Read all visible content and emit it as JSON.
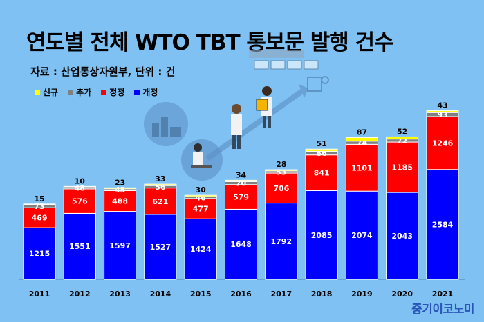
{
  "header": {
    "title": "연도별 전체 WTO TBT 통보문 발행 건수",
    "source": "자료 : 산업통상자원부, 단위 : 건"
  },
  "brand": "중기이코노미",
  "colors": {
    "background": "#7fc1f2",
    "new": "#ffff00",
    "add": "#808080",
    "revise": "#ff0000",
    "regular": "#0000ff"
  },
  "chart_data": {
    "type": "bar",
    "stacked": true,
    "categories": [
      "2011",
      "2012",
      "2013",
      "2014",
      "2015",
      "2016",
      "2017",
      "2018",
      "2019",
      "2020",
      "2021"
    ],
    "series": [
      {
        "name": "개정",
        "key": "regular",
        "values": [
          1215,
          1551,
          1597,
          1527,
          1424,
          1648,
          1792,
          2085,
          2074,
          2043,
          2584
        ]
      },
      {
        "name": "정정",
        "key": "revise",
        "values": [
          469,
          576,
          488,
          621,
          477,
          579,
          706,
          841,
          1101,
          1185,
          1246
        ]
      },
      {
        "name": "추가",
        "key": "add",
        "values": [
          73,
          48,
          45,
          56,
          46,
          70,
          53,
          86,
          74,
          72,
          93
        ]
      },
      {
        "name": "신규",
        "key": "new",
        "values": [
          15,
          10,
          23,
          33,
          30,
          34,
          28,
          51,
          87,
          52,
          43
        ]
      }
    ],
    "legend_order": [
      "신규",
      "추가",
      "정정",
      "개정"
    ],
    "legend_position": "top-left",
    "ylim": [
      0,
      4300
    ],
    "grid": false
  }
}
